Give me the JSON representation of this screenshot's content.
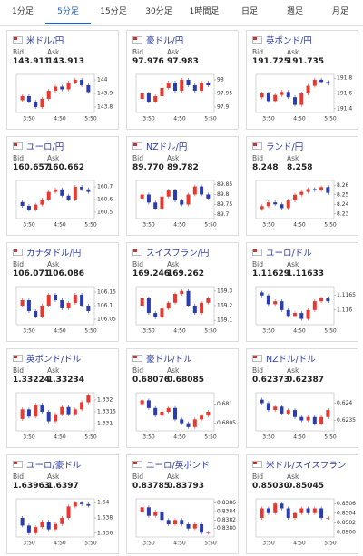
{
  "tabs": [
    "1分足",
    "5分足",
    "15分足",
    "30分足",
    "1時間足",
    "日足",
    "週足",
    "月足"
  ],
  "active_tab": 1,
  "labels": {
    "bid": "Bid",
    "ask": "Ask"
  },
  "time_labels": [
    "3:50",
    "4:50",
    "5:50"
  ],
  "up_color": "#e8382f",
  "down_color": "#2a3cb0",
  "cards": [
    {
      "title": "米ドル/円",
      "bid": "143.911",
      "ask": "143.913",
      "ylim": [
        143.76,
        144.04
      ],
      "yticks": [
        144,
        143.9,
        143.8
      ],
      "values": [
        143.85,
        143.88,
        143.84,
        143.8,
        143.86,
        143.92,
        143.95,
        143.93,
        143.98,
        144.0,
        143.96,
        143.91
      ]
    },
    {
      "title": "豪ドル/円",
      "bid": "97.976",
      "ask": "97.983",
      "ylim": [
        97.88,
        98.02
      ],
      "yticks": [
        98,
        97.95,
        97.9
      ],
      "values": [
        97.93,
        97.95,
        97.92,
        97.94,
        97.97,
        97.99,
        97.96,
        98.0,
        97.98,
        97.96,
        97.99,
        97.98
      ]
    },
    {
      "title": "英ポンド/円",
      "bid": "191.725",
      "ask": "191.735",
      "ylim": [
        191.35,
        191.85
      ],
      "yticks": [
        191.8,
        191.6,
        191.4
      ],
      "values": [
        191.55,
        191.6,
        191.5,
        191.58,
        191.62,
        191.55,
        191.45,
        191.6,
        191.7,
        191.78,
        191.75,
        191.73
      ]
    },
    {
      "title": "ユーロ/円",
      "bid": "160.657",
      "ask": "160.662",
      "ylim": [
        160.45,
        160.75
      ],
      "yticks": [
        160.7,
        160.6,
        160.5
      ],
      "values": [
        160.58,
        160.55,
        160.52,
        160.56,
        160.6,
        160.66,
        160.68,
        160.63,
        160.6,
        160.7,
        160.68,
        160.66
      ]
    },
    {
      "title": "NZドル/円",
      "bid": "89.770",
      "ask": "89.782",
      "ylim": [
        89.68,
        89.87
      ],
      "yticks": [
        89.85,
        89.8,
        89.75,
        89.7
      ],
      "values": [
        89.78,
        89.8,
        89.76,
        89.73,
        89.79,
        89.82,
        89.77,
        89.75,
        89.8,
        89.84,
        89.8,
        89.78
      ]
    },
    {
      "title": "ランド/円",
      "bid": "8.248",
      "ask": "8.258",
      "ylim": [
        8.225,
        8.265
      ],
      "yticks": [
        8.26,
        8.25,
        8.24,
        8.23
      ],
      "values": [
        8.235,
        8.238,
        8.242,
        8.24,
        8.236,
        8.244,
        8.25,
        8.253,
        8.256,
        8.255,
        8.258,
        8.252
      ]
    },
    {
      "title": "カナダドル/円",
      "bid": "106.071",
      "ask": "106.086",
      "ylim": [
        106.03,
        106.17
      ],
      "yticks": [
        106.15,
        106.1,
        106.05
      ],
      "values": [
        106.1,
        106.12,
        106.08,
        106.06,
        106.1,
        106.14,
        106.12,
        106.09,
        106.11,
        106.14,
        106.1,
        106.08
      ]
    },
    {
      "title": "スイスフラン/円",
      "bid": "169.246",
      "ask": "169.262",
      "ylim": [
        169.07,
        169.33
      ],
      "yticks": [
        169.3,
        169.2,
        169.1
      ],
      "values": [
        169.2,
        169.25,
        169.15,
        169.12,
        169.18,
        169.22,
        169.28,
        169.3,
        169.2,
        169.15,
        169.22,
        169.25
      ]
    },
    {
      "title": "ユーロ/ドル",
      "bid": "1.11629",
      "ask": "1.11633",
      "ylim": [
        1.1155,
        1.1168
      ],
      "yticks": [
        1.1165,
        1.116
      ],
      "values": [
        1.1166,
        1.1165,
        1.1162,
        1.1163,
        1.116,
        1.1158,
        1.1159,
        1.1157,
        1.116,
        1.1163,
        1.1164,
        1.1163
      ]
    },
    {
      "title": "英ポンド/ドル",
      "bid": "1.33224",
      "ask": "1.33234",
      "ylim": [
        1.3307,
        1.3323
      ],
      "yticks": [
        1.332,
        1.3315,
        1.331
      ],
      "values": [
        1.3312,
        1.3316,
        1.3313,
        1.3318,
        1.3315,
        1.3311,
        1.3314,
        1.3317,
        1.3314,
        1.3316,
        1.3319,
        1.3322
      ]
    },
    {
      "title": "豪ドル/ドル",
      "bid": "0.68076",
      "ask": "0.68085",
      "ylim": [
        0.6803,
        0.6813
      ],
      "yticks": [
        0.681,
        0.6805
      ],
      "values": [
        0.681,
        0.6811,
        0.6809,
        0.6807,
        0.6808,
        0.6809,
        0.6806,
        0.6805,
        0.6804,
        0.6806,
        0.6807,
        0.6808
      ]
    },
    {
      "title": "NZドル/ドル",
      "bid": "0.62373",
      "ask": "0.62387",
      "ylim": [
        0.6232,
        0.6243
      ],
      "yticks": [
        0.624,
        0.6235
      ],
      "values": [
        0.6241,
        0.624,
        0.6238,
        0.6239,
        0.6237,
        0.6238,
        0.6236,
        0.6235,
        0.6236,
        0.6234,
        0.6236,
        0.6238
      ]
    },
    {
      "title": "ユーロ/豪ドル",
      "bid": "1.63963",
      "ask": "1.6397",
      "ylim": [
        1.6355,
        1.6405
      ],
      "yticks": [
        1.64,
        1.638,
        1.636
      ],
      "values": [
        1.638,
        1.637,
        1.636,
        1.6368,
        1.6375,
        1.6365,
        1.6372,
        1.638,
        1.6395,
        1.64,
        1.6398,
        1.6396
      ]
    },
    {
      "title": "ユーロ/英ポンド",
      "bid": "0.83785",
      "ask": "0.83793",
      "ylim": [
        0.8378,
        0.8387
      ],
      "yticks": [
        0.8386,
        0.8384,
        0.8382,
        {
          "value": 0.838,
          "label": "0.8380"
        }
      ],
      "values": [
        0.8384,
        0.8385,
        0.8383,
        0.8384,
        0.8382,
        0.8381,
        0.8382,
        0.8381,
        0.838,
        0.8381,
        0.8379,
        0.8379
      ]
    },
    {
      "title": "米ドル/スイスフラン",
      "bid": "0.85030",
      "ask": "0.85045",
      "ylim": [
        0.8499,
        0.8507
      ],
      "yticks": [
        0.8506,
        0.8504,
        0.8502,
        {
          "value": 0.85,
          "label": "0.8500"
        }
      ],
      "values": [
        0.8503,
        0.8505,
        0.8504,
        0.8506,
        0.8505,
        0.8503,
        0.8504,
        0.8505,
        0.8504,
        0.8505,
        0.8503,
        0.8503
      ]
    }
  ]
}
